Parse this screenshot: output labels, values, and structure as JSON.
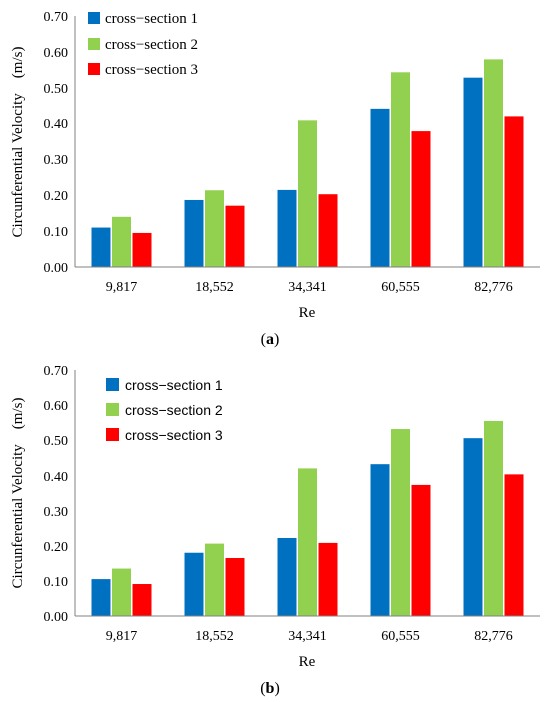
{
  "chart_data": [
    {
      "type": "bar",
      "panel_label": "a",
      "categories": [
        "9,817",
        "18,552",
        "34,341",
        "60,555",
        "82,776"
      ],
      "series": [
        {
          "name": "cross−section 1",
          "color": "#0070C0",
          "values": [
            0.11,
            0.187,
            0.215,
            0.441,
            0.528
          ]
        },
        {
          "name": "cross−section 2",
          "color": "#92D050",
          "values": [
            0.14,
            0.214,
            0.409,
            0.543,
            0.579
          ]
        },
        {
          "name": "cross−section 3",
          "color": "#FF0000",
          "values": [
            0.095,
            0.171,
            0.203,
            0.379,
            0.42
          ]
        }
      ],
      "xlabel": "Re",
      "ylabel": "Circunferential Velocity　(m/s)",
      "ylim": [
        0,
        0.7
      ],
      "yticks": [
        "0.00",
        "0.10",
        "0.20",
        "0.30",
        "0.40",
        "0.50",
        "0.60",
        "0.70"
      ],
      "grid": false,
      "legend_position": "top-left"
    },
    {
      "type": "bar",
      "panel_label": "b",
      "categories": [
        "9,817",
        "18,552",
        "34,341",
        "60,555",
        "82,776"
      ],
      "series": [
        {
          "name": "cross−section 1",
          "color": "#0070C0",
          "values": [
            0.105,
            0.18,
            0.222,
            0.432,
            0.506
          ]
        },
        {
          "name": "cross−section 2",
          "color": "#92D050",
          "values": [
            0.135,
            0.206,
            0.42,
            0.532,
            0.555
          ]
        },
        {
          "name": "cross−section 3",
          "color": "#FF0000",
          "values": [
            0.091,
            0.165,
            0.208,
            0.373,
            0.403
          ]
        }
      ],
      "xlabel": "Re",
      "ylabel": "Circunferential Velocity　(m/s)",
      "ylim": [
        0,
        0.7
      ],
      "yticks": [
        "0.00",
        "0.10",
        "0.20",
        "0.30",
        "0.40",
        "0.50",
        "0.60",
        "0.70"
      ],
      "grid": false,
      "legend_position": "top-left"
    }
  ]
}
